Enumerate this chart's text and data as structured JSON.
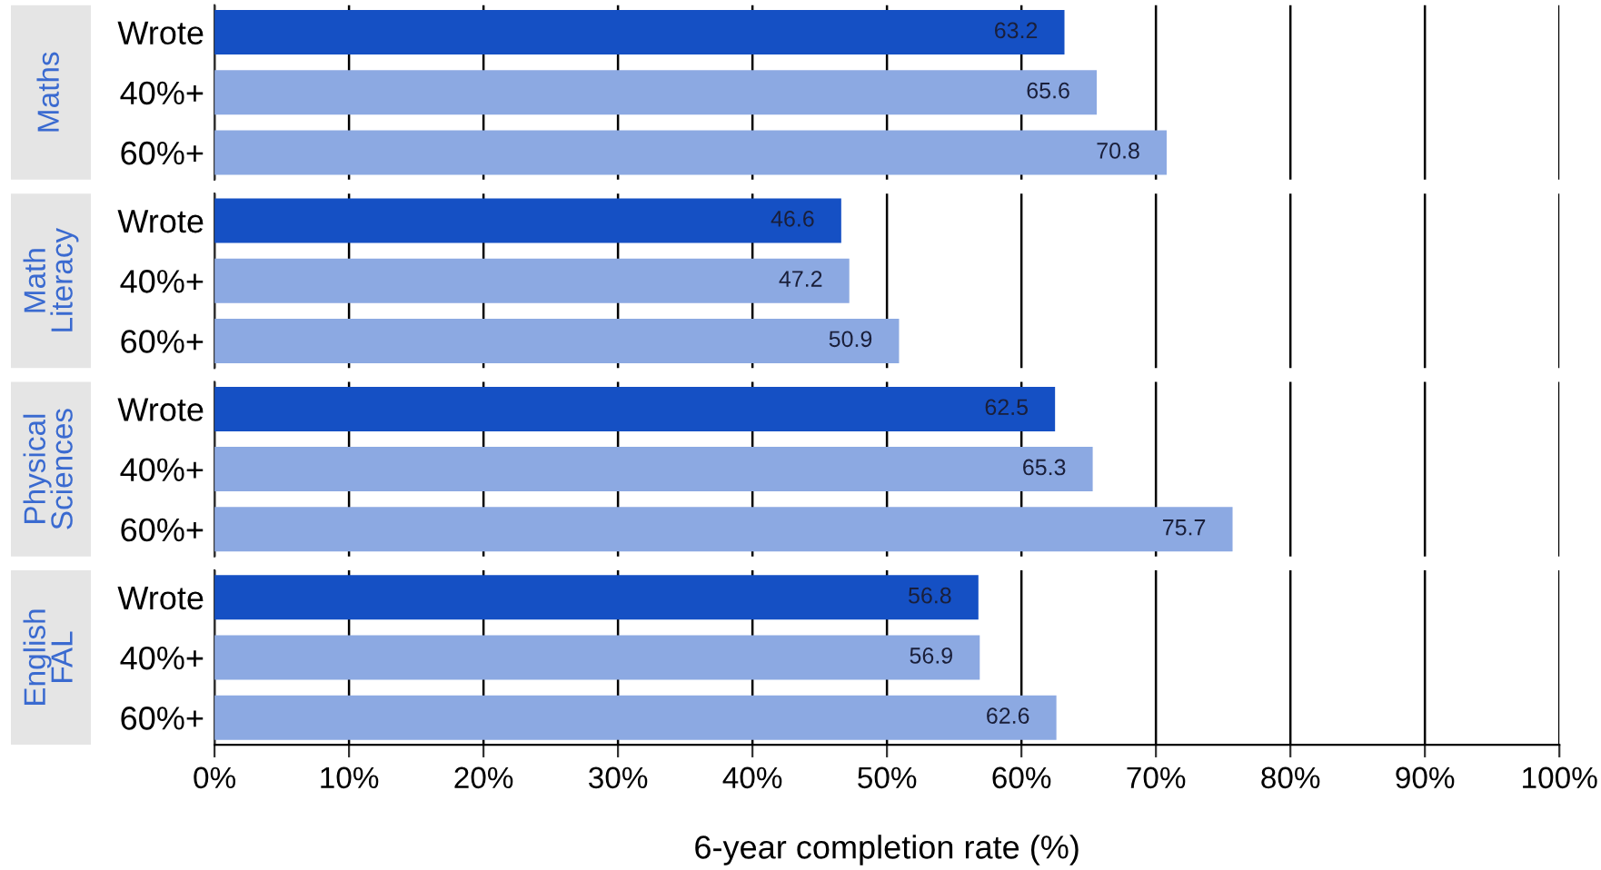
{
  "chart_data": [
    {
      "type": "bar",
      "orientation": "horizontal",
      "title": "Maths",
      "categories": [
        "Wrote",
        "40%+",
        "60%+"
      ],
      "values": [
        63.2,
        65.6,
        70.8
      ],
      "colors": [
        "#1550c4",
        "#8ca9e2",
        "#8ca9e2"
      ],
      "data_labels": true,
      "xlim": [
        0,
        100
      ],
      "xticks": [
        {
          "value": 0,
          "label": null
        },
        {
          "value": 10,
          "label": null
        },
        {
          "value": 20,
          "label": null
        },
        {
          "value": 30,
          "label": null
        },
        {
          "value": 40,
          "label": null
        },
        {
          "value": 50,
          "label": null
        },
        {
          "value": 60,
          "label": null
        },
        {
          "value": 70,
          "label": null
        },
        {
          "value": 80,
          "label": null
        },
        {
          "value": 90,
          "label": null
        },
        {
          "value": 100,
          "label": null
        }
      ],
      "grid": "x",
      "tick_labels": "y"
    },
    {
      "type": "bar",
      "orientation": "horizontal",
      "title": "Math\nLiteracy",
      "categories": [
        "Wrote",
        "40%+",
        "60%+"
      ],
      "values": [
        46.6,
        47.2,
        50.9
      ],
      "colors": [
        "#1550c4",
        "#8ca9e2",
        "#8ca9e2"
      ],
      "data_labels": true,
      "xlim": [
        0,
        100
      ],
      "xticks": [
        {
          "value": 0,
          "label": null
        },
        {
          "value": 10,
          "label": null
        },
        {
          "value": 20,
          "label": null
        },
        {
          "value": 30,
          "label": null
        },
        {
          "value": 40,
          "label": null
        },
        {
          "value": 50,
          "label": null
        },
        {
          "value": 60,
          "label": null
        },
        {
          "value": 70,
          "label": null
        },
        {
          "value": 80,
          "label": null
        },
        {
          "value": 90,
          "label": null
        },
        {
          "value": 100,
          "label": null
        }
      ],
      "grid": "x",
      "tick_labels": "y"
    },
    {
      "type": "bar",
      "orientation": "horizontal",
      "title": "Physical\nSciences",
      "categories": [
        "Wrote",
        "40%+",
        "60%+"
      ],
      "values": [
        62.5,
        65.3,
        75.7
      ],
      "colors": [
        "#1550c4",
        "#8ca9e2",
        "#8ca9e2"
      ],
      "data_labels": true,
      "xlim": [
        0,
        100
      ],
      "xticks": [
        {
          "value": 0,
          "label": null
        },
        {
          "value": 10,
          "label": null
        },
        {
          "value": 20,
          "label": null
        },
        {
          "value": 30,
          "label": null
        },
        {
          "value": 40,
          "label": null
        },
        {
          "value": 50,
          "label": null
        },
        {
          "value": 60,
          "label": null
        },
        {
          "value": 70,
          "label": null
        },
        {
          "value": 80,
          "label": null
        },
        {
          "value": 90,
          "label": null
        },
        {
          "value": 100,
          "label": null
        }
      ],
      "grid": "x",
      "tick_labels": "y"
    },
    {
      "type": "bar",
      "orientation": "horizontal",
      "title": "English\nFAL",
      "categories": [
        "Wrote",
        "40%+",
        "60%+"
      ],
      "values": [
        56.8,
        56.9,
        62.6
      ],
      "colors": [
        "#1550c4",
        "#8ca9e2",
        "#8ca9e2"
      ],
      "data_labels": true,
      "xlim": [
        0,
        100
      ],
      "xticks": [
        {
          "value": 0,
          "label": "0%"
        },
        {
          "value": 10,
          "label": "10%"
        },
        {
          "value": 20,
          "label": "20%"
        },
        {
          "value": 30,
          "label": "30%"
        },
        {
          "value": 40,
          "label": "40%"
        },
        {
          "value": 50,
          "label": "50%"
        },
        {
          "value": 60,
          "label": "60%"
        },
        {
          "value": 70,
          "label": "70%"
        },
        {
          "value": 80,
          "label": "80%"
        },
        {
          "value": 90,
          "label": "90%"
        },
        {
          "value": 100,
          "label": "100%"
        }
      ],
      "grid": "x",
      "xlabel": "6-year completion rate (%)"
    }
  ]
}
